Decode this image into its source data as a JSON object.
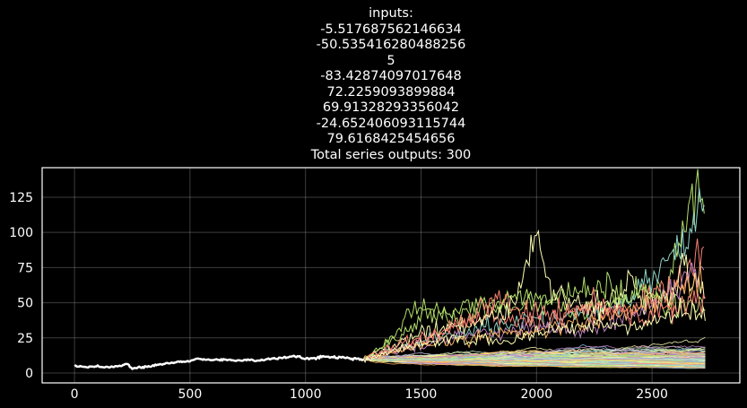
{
  "chart_data": {
    "type": "line",
    "title_lines": [
      "inputs:",
      "-5.517687562146634",
      "-50.535416280488256",
      "5",
      "-83.42874097017648",
      "72.2259093899884",
      "69.91328293356042",
      "-24.652406093115744",
      "79.6168425454656",
      "Total series outputs: 300"
    ],
    "xlabel": "",
    "ylabel": "",
    "xlim": [
      -140,
      2880
    ],
    "ylim": [
      -7,
      146
    ],
    "xticks": [
      0,
      500,
      1000,
      1500,
      2000,
      2500
    ],
    "yticks": [
      0,
      25,
      50,
      75,
      100,
      125
    ],
    "grid": true,
    "history": {
      "color": "#ffffff",
      "points": [
        [
          0,
          5
        ],
        [
          50,
          4.4
        ],
        [
          100,
          4.8
        ],
        [
          150,
          4.2
        ],
        [
          200,
          5.2
        ],
        [
          230,
          6.5
        ],
        [
          250,
          3.0
        ],
        [
          300,
          4.2
        ],
        [
          350,
          5.5
        ],
        [
          400,
          6.8
        ],
        [
          450,
          7.8
        ],
        [
          500,
          8.5
        ],
        [
          530,
          10.2
        ],
        [
          600,
          9.2
        ],
        [
          650,
          9.6
        ],
        [
          700,
          8.8
        ],
        [
          750,
          9.6
        ],
        [
          800,
          8.8
        ],
        [
          850,
          10.0
        ],
        [
          900,
          10.8
        ],
        [
          950,
          12.0
        ],
        [
          1000,
          10.2
        ],
        [
          1050,
          10.8
        ],
        [
          1080,
          11.8
        ],
        [
          1120,
          10.8
        ],
        [
          1160,
          11.3
        ],
        [
          1200,
          10.3
        ],
        [
          1250,
          9.8
        ]
      ]
    },
    "forecast": {
      "start_x": 1250,
      "end_x": 2730,
      "start_y": 9.8,
      "series_count": 300,
      "palette": [
        "#8dd3c7",
        "#feffb3",
        "#bfbbd9",
        "#fa8174",
        "#81b1d2",
        "#fdb462",
        "#b3de69",
        "#bc82bd",
        "#ccebc4",
        "#ffed6f"
      ],
      "highlighted_paths": [
        {
          "color": "#b3de69",
          "points": [
            [
              1250,
              9.8
            ],
            [
              1400,
              25
            ],
            [
              1520,
              44
            ],
            [
              1600,
              40
            ],
            [
              1700,
              42
            ],
            [
              1800,
              48
            ],
            [
              1900,
              45
            ],
            [
              2000,
              50
            ],
            [
              2100,
              47
            ],
            [
              2200,
              42
            ],
            [
              2300,
              48
            ],
            [
              2400,
              55
            ],
            [
              2500,
              58
            ],
            [
              2550,
              55
            ],
            [
              2600,
              78
            ],
            [
              2650,
              118
            ],
            [
              2690,
              133
            ],
            [
              2710,
              115
            ],
            [
              2730,
              128
            ]
          ]
        },
        {
          "color": "#8dd3c7",
          "points": [
            [
              1250,
              9.8
            ],
            [
              1400,
              18
            ],
            [
              1550,
              24
            ],
            [
              1700,
              30
            ],
            [
              1850,
              34
            ],
            [
              2000,
              38
            ],
            [
              2150,
              40
            ],
            [
              2300,
              44
            ],
            [
              2400,
              55
            ],
            [
              2500,
              70
            ],
            [
              2560,
              82
            ],
            [
              2600,
              88
            ],
            [
              2640,
              93
            ],
            [
              2680,
              105
            ],
            [
              2710,
              125
            ],
            [
              2730,
              108
            ]
          ]
        },
        {
          "color": "#fa8174",
          "points": [
            [
              1250,
              9.8
            ],
            [
              1400,
              17
            ],
            [
              1550,
              26
            ],
            [
              1700,
              35
            ],
            [
              1800,
              40
            ],
            [
              1900,
              38
            ],
            [
              2000,
              33
            ],
            [
              2100,
              38
            ],
            [
              2200,
              45
            ],
            [
              2300,
              42
            ],
            [
              2400,
              47
            ],
            [
              2500,
              55
            ],
            [
              2580,
              60
            ],
            [
              2640,
              68
            ],
            [
              2700,
              85
            ],
            [
              2730,
              90
            ]
          ]
        },
        {
          "color": "#feffb3",
          "points": [
            [
              1250,
              9.8
            ],
            [
              1400,
              22
            ],
            [
              1550,
              30
            ],
            [
              1700,
              36
            ],
            [
              1800,
              40
            ],
            [
              1900,
              50
            ],
            [
              1960,
              75
            ],
            [
              2000,
              95
            ],
            [
              2050,
              62
            ],
            [
              2100,
              55
            ],
            [
              2200,
              48
            ],
            [
              2300,
              52
            ],
            [
              2400,
              60
            ],
            [
              2450,
              52
            ],
            [
              2500,
              48
            ],
            [
              2600,
              55
            ],
            [
              2640,
              90
            ],
            [
              2670,
              65
            ],
            [
              2730,
              58
            ]
          ]
        },
        {
          "color": "#bc82bd",
          "points": [
            [
              1250,
              9.8
            ],
            [
              1400,
              16
            ],
            [
              1550,
              22
            ],
            [
              1700,
              28
            ],
            [
              1850,
              30
            ],
            [
              2000,
              32
            ],
            [
              2150,
              30
            ],
            [
              2300,
              34
            ],
            [
              2400,
              42
            ],
            [
              2500,
              48
            ],
            [
              2600,
              60
            ],
            [
              2700,
              75
            ],
            [
              2730,
              80
            ]
          ]
        },
        {
          "color": "#fdb462",
          "points": [
            [
              1250,
              9.8
            ],
            [
              1400,
              15
            ],
            [
              1550,
              20
            ],
            [
              1700,
              25
            ],
            [
              1850,
              28
            ],
            [
              2000,
              30
            ],
            [
              2150,
              35
            ],
            [
              2300,
              40
            ],
            [
              2450,
              45
            ],
            [
              2600,
              58
            ],
            [
              2700,
              62
            ],
            [
              2730,
              60
            ]
          ]
        },
        {
          "color": "#b3de69",
          "points": [
            [
              1250,
              9.8
            ],
            [
              1350,
              22
            ],
            [
              1450,
              40
            ],
            [
              1500,
              48
            ],
            [
              1560,
              42
            ],
            [
              1650,
              46
            ],
            [
              1750,
              52
            ],
            [
              1850,
              48
            ],
            [
              1950,
              55
            ],
            [
              2050,
              50
            ],
            [
              2150,
              58
            ],
            [
              2250,
              62
            ],
            [
              2350,
              56
            ],
            [
              2450,
              60
            ],
            [
              2550,
              50
            ],
            [
              2650,
              48
            ],
            [
              2730,
              46
            ]
          ]
        },
        {
          "color": "#fa8174",
          "points": [
            [
              1250,
              9.8
            ],
            [
              1400,
              20
            ],
            [
              1600,
              30
            ],
            [
              1750,
              42
            ],
            [
              1850,
              58
            ],
            [
              1900,
              48
            ],
            [
              2000,
              40
            ],
            [
              2150,
              45
            ],
            [
              2250,
              50
            ],
            [
              2350,
              45
            ],
            [
              2450,
              40
            ],
            [
              2550,
              45
            ],
            [
              2650,
              52
            ],
            [
              2730,
              50
            ]
          ]
        },
        {
          "color": "#feffb3",
          "points": [
            [
              1250,
              9.8
            ],
            [
              1450,
              18
            ],
            [
              1650,
              25
            ],
            [
              1850,
              22
            ],
            [
              2050,
              30
            ],
            [
              2250,
              35
            ],
            [
              2400,
              32
            ],
            [
              2550,
              40
            ],
            [
              2650,
              45
            ],
            [
              2730,
              42
            ]
          ]
        }
      ]
    }
  }
}
